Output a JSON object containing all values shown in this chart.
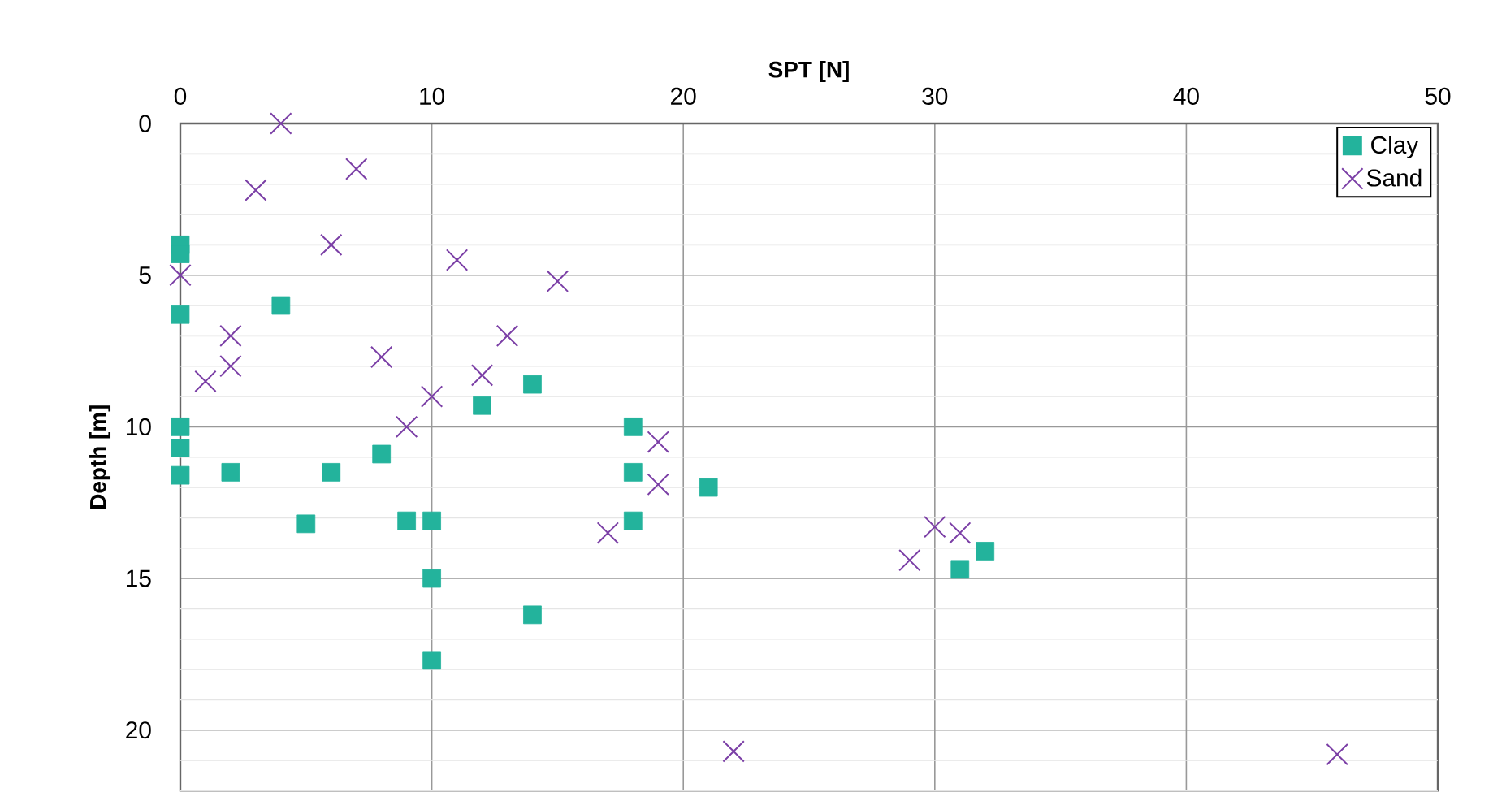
{
  "chart_data": {
    "type": "scatter",
    "xlabel": "SPT [N]",
    "ylabel": "Depth [m]",
    "xlim": [
      0,
      50
    ],
    "xticks": [
      0,
      10,
      20,
      30,
      40,
      50
    ],
    "ylim": [
      22,
      0
    ],
    "yticks": [
      0,
      {
        "value": 1,
        "label": null
      },
      {
        "value": 2,
        "label": null
      },
      {
        "value": 3,
        "label": null
      },
      {
        "value": 4,
        "label": null
      },
      5,
      {
        "value": 6,
        "label": null
      },
      {
        "value": 7,
        "label": null
      },
      {
        "value": 8,
        "label": null
      },
      {
        "value": 9,
        "label": null
      },
      10,
      {
        "value": 11,
        "label": null
      },
      {
        "value": 12,
        "label": null
      },
      {
        "value": 13,
        "label": null
      },
      {
        "value": 14,
        "label": null
      },
      15,
      {
        "value": 16,
        "label": null
      },
      {
        "value": 17,
        "label": null
      },
      {
        "value": 18,
        "label": null
      },
      {
        "value": 19,
        "label": null
      },
      20,
      {
        "value": 21,
        "label": null
      },
      {
        "value": 22,
        "label": null
      }
    ],
    "grid": true,
    "legend": "top right",
    "series": [
      {
        "name": "Clay",
        "color": "#23b39c",
        "marker": "square",
        "x": [
          0,
          0,
          0,
          4,
          14,
          12,
          0,
          0,
          0,
          2,
          6,
          8,
          5,
          9,
          10,
          10,
          14,
          10,
          18,
          18,
          18,
          21,
          32,
          31
        ],
        "values": [
          4.0,
          4.3,
          6.3,
          6.0,
          8.6,
          9.3,
          10.0,
          10.7,
          11.6,
          11.5,
          11.5,
          10.9,
          13.2,
          13.1,
          13.1,
          15.0,
          16.2,
          17.7,
          10.0,
          11.5,
          13.1,
          12.0,
          14.1,
          14.7
        ]
      },
      {
        "name": "Sand",
        "color": "#7b3fa6",
        "marker": "cross",
        "x": [
          4,
          7,
          3,
          6,
          0,
          11,
          15,
          2,
          13,
          2,
          8,
          1,
          12,
          10,
          9,
          19,
          19,
          17,
          22,
          30,
          31,
          29,
          46
        ],
        "values": [
          0,
          1.5,
          2.2,
          4.0,
          5.0,
          4.5,
          5.2,
          7.0,
          7.0,
          8.0,
          7.7,
          8.5,
          8.3,
          9.0,
          10.0,
          10.5,
          11.9,
          13.5,
          20.7,
          13.3,
          13.5,
          14.4,
          20.8
        ]
      }
    ]
  }
}
